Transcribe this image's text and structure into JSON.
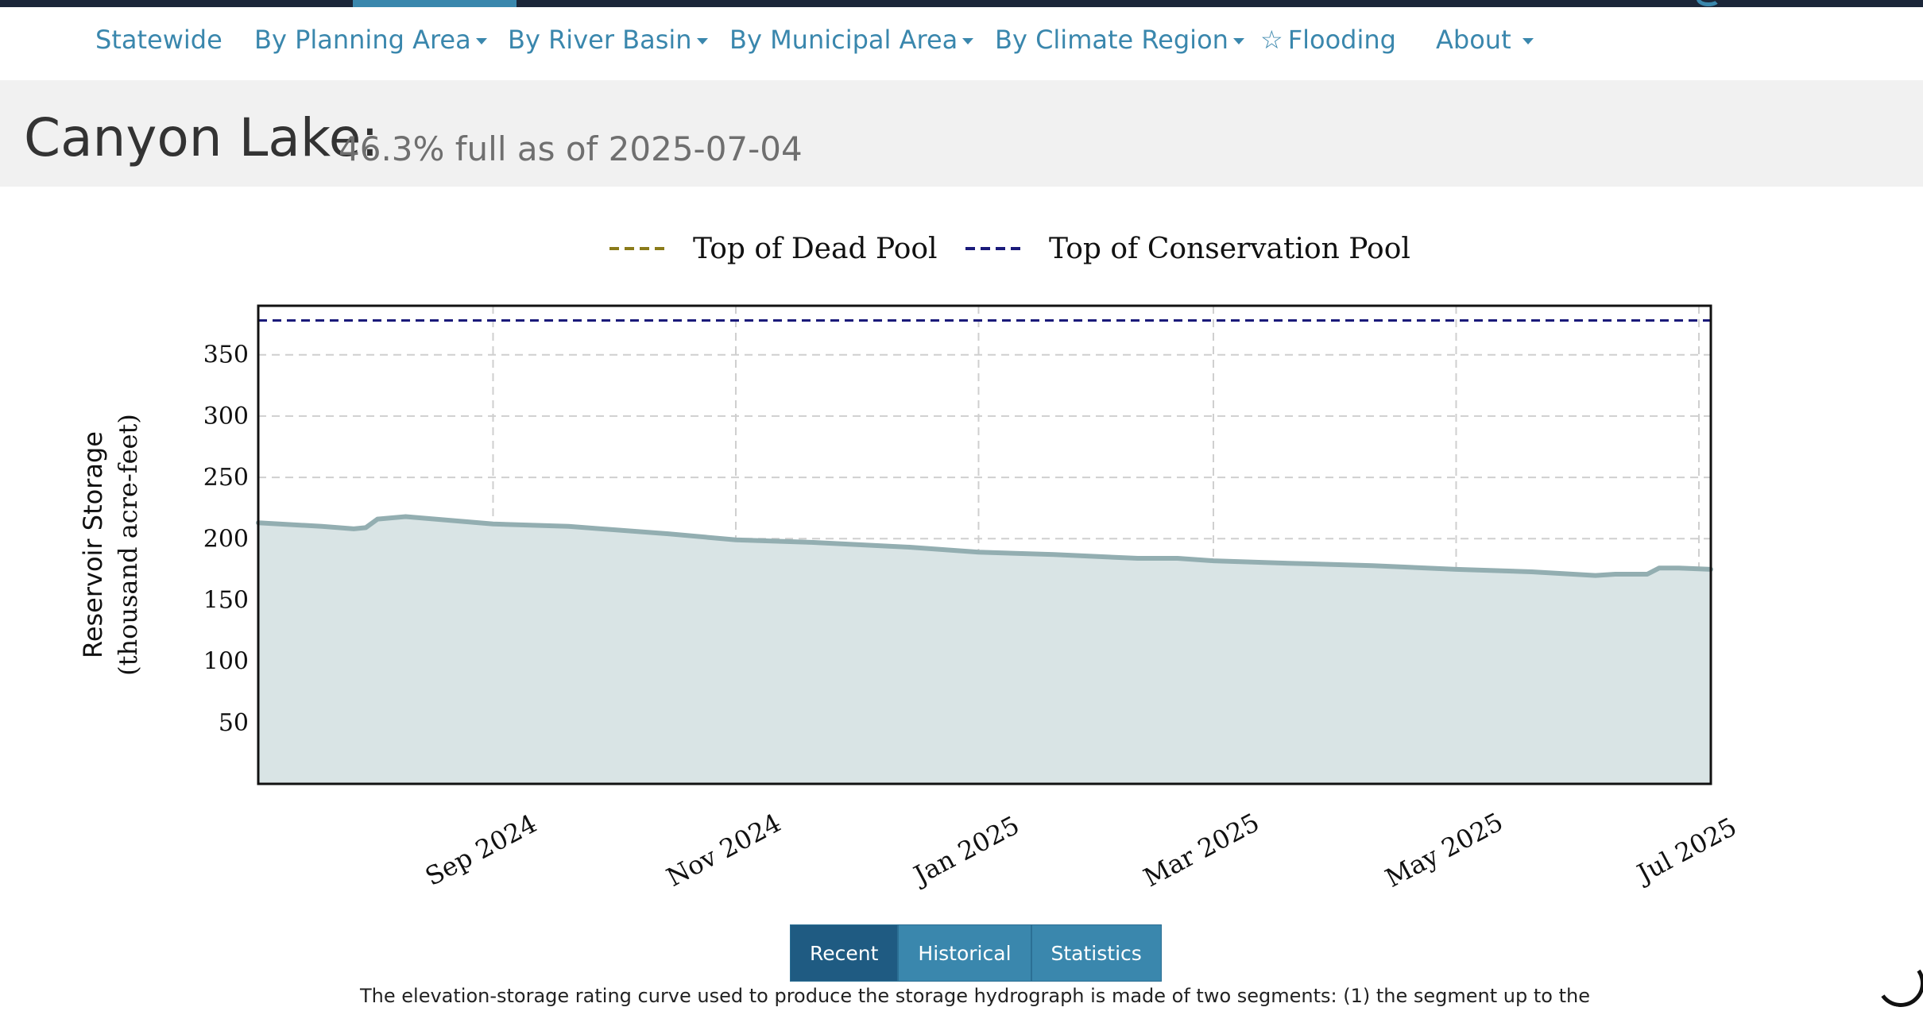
{
  "nav": {
    "items": [
      {
        "label": "Statewide",
        "dropdown": false
      },
      {
        "label": "By Planning Area",
        "dropdown": true
      },
      {
        "label": "By River Basin",
        "dropdown": true
      },
      {
        "label": "By Municipal Area",
        "dropdown": true
      },
      {
        "label": "By Climate Region",
        "dropdown": true
      },
      {
        "label": "Flooding",
        "dropdown": false,
        "icon": "star-icon"
      },
      {
        "label": "About",
        "dropdown": true
      }
    ]
  },
  "header": {
    "title": "Canyon Lake:",
    "subtitle": "46.3% full as of 2025-07-04"
  },
  "buttons": {
    "recent": "Recent",
    "historical": "Historical",
    "statistics": "Statistics"
  },
  "footnote": "The elevation-storage rating curve used to produce the storage hydrograph is made of two segments: (1) the segment up to the",
  "colors": {
    "accent": "#3a87ad",
    "dead_pool": "#8a7b1a",
    "conservation_pool": "#1a1a7a",
    "storage_line": "#93aeb1",
    "storage_fill": "#d9e4e5"
  },
  "chart_data": {
    "type": "area",
    "ylabel": "Reservoir Storage",
    "ylabel2": "(thousand acre-feet)",
    "xlabel": "",
    "ylim": [
      0,
      390
    ],
    "yticks": [
      50,
      100,
      150,
      200,
      250,
      300,
      350
    ],
    "xlim": [
      "2024-07-04",
      "2025-07-04"
    ],
    "xticks": [
      {
        "date": "2024-09-01",
        "label": "Sep 2024"
      },
      {
        "date": "2024-11-01",
        "label": "Nov 2024"
      },
      {
        "date": "2025-01-01",
        "label": "Jan 2025"
      },
      {
        "date": "2025-03-01",
        "label": "Mar 2025"
      },
      {
        "date": "2025-05-01",
        "label": "May 2025"
      },
      {
        "date": "2025-07-01",
        "label": "Jul 2025"
      }
    ],
    "grid": true,
    "legend_position": "top",
    "legend": [
      {
        "name": "Top of Dead Pool",
        "style": "dashed",
        "color": "#8a7b1a"
      },
      {
        "name": "Top of Conservation Pool",
        "style": "dashed",
        "color": "#1a1a7a"
      }
    ],
    "reference_lines": [
      {
        "name": "Top of Conservation Pool",
        "y": 378,
        "color": "#1a1a7a"
      },
      {
        "name": "Top of Dead Pool",
        "y": 0,
        "color": "#8a7b1a"
      }
    ],
    "series": [
      {
        "x": [
          "2024-07-04",
          "2024-07-20",
          "2024-07-28",
          "2024-07-31",
          "2024-08-03",
          "2024-08-10",
          "2024-09-01",
          "2024-09-20",
          "2024-10-15",
          "2024-11-01",
          "2024-11-20",
          "2024-12-15",
          "2025-01-01",
          "2025-01-20",
          "2025-02-10",
          "2025-02-20",
          "2025-03-01",
          "2025-03-20",
          "2025-04-10",
          "2025-05-01",
          "2025-05-20",
          "2025-06-05",
          "2025-06-10",
          "2025-06-18",
          "2025-06-21",
          "2025-06-26",
          "2025-07-04"
        ],
        "y": [
          213,
          210,
          208,
          209,
          216,
          218,
          212,
          210,
          204,
          199,
          197,
          193,
          189,
          187,
          184,
          184,
          182,
          180,
          178,
          175,
          173,
          170,
          171,
          171,
          176,
          176,
          175
        ]
      }
    ]
  }
}
